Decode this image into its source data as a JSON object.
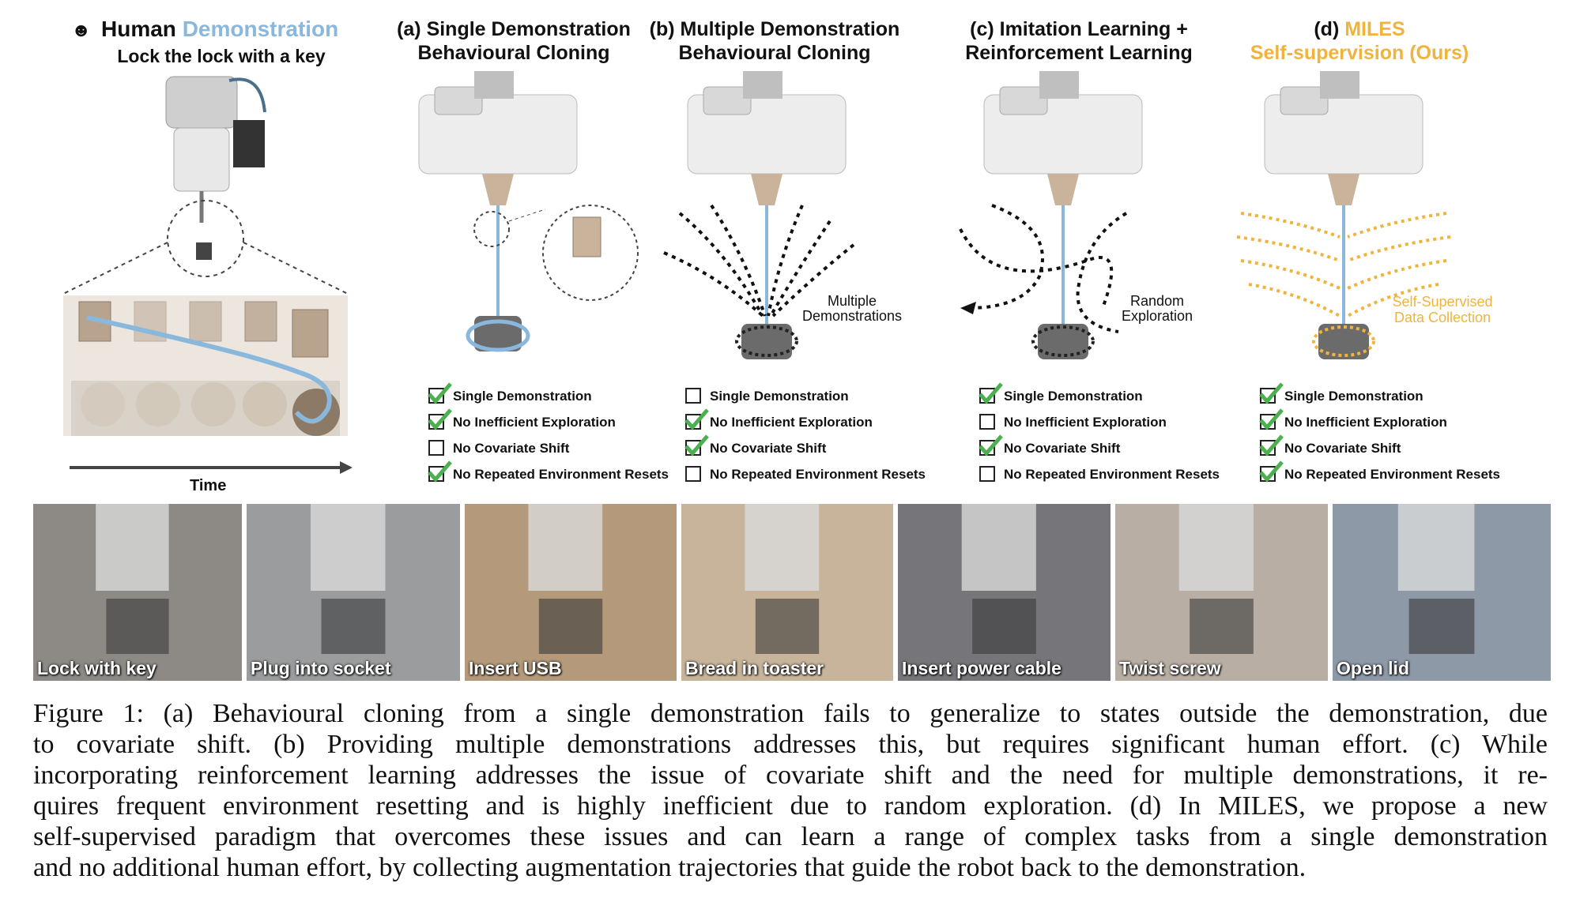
{
  "panels": {
    "human": {
      "title_a": "Human",
      "title_b": "Demonstration",
      "subtitle": "Lock the lock with a key",
      "time_label": "Time"
    },
    "a": {
      "line1": "(a) Single Demonstration",
      "line2": "Behavioural Cloning"
    },
    "b": {
      "line1": "(b) Multiple Demonstration",
      "line2": "Behavioural Cloning",
      "annotation_1": "Multiple",
      "annotation_2": "Demonstrations"
    },
    "c": {
      "line1": "(c) Imitation Learning +",
      "line2": "Reinforcement Learning",
      "annotation_1": "Random",
      "annotation_2": "Exploration"
    },
    "d": {
      "line1_prefix": "(d) ",
      "line1_accent": "MILES",
      "line2": "Self-supervision (Ours)",
      "annotation_1": "Self-Supervised",
      "annotation_2": "Data Collection"
    }
  },
  "checklist_labels": [
    "Single Demonstration",
    "No Inefficient Exploration",
    "No Covariate Shift",
    "No Repeated Environment Resets"
  ],
  "checklists": {
    "a": [
      true,
      true,
      false,
      true
    ],
    "b": [
      false,
      true,
      true,
      false
    ],
    "c": [
      true,
      false,
      true,
      false
    ],
    "d": [
      true,
      true,
      true,
      true
    ]
  },
  "tasks": [
    "Lock with key",
    "Plug into socket",
    "Insert USB",
    "Bread in toaster",
    "Insert power cable",
    "Twist screw",
    "Open lid"
  ],
  "caption_lines": [
    "Figure 1: (a) Behavioural cloning from a single demonstration fails to generalize to states outside the demonstration, due",
    "to covariate shift.  (b) Providing multiple demonstrations addresses this, but requires significant human effort.  (c) While",
    "incorporating reinforcement learning addresses the issue of covariate shift and the need for multiple demonstrations, it re-",
    "quires frequent environment resetting and is highly inefficient due to random exploration. (d) In MILES, we propose a new",
    "self-supervised paradigm that overcomes these issues and can learn a range of complex tasks from a single demonstration",
    "and no additional human effort, by collecting augmentation trajectories that guide the robot back to the demonstration."
  ],
  "colors": {
    "trajectory": "#8ab7dc",
    "miles": "#f0b43c",
    "check": "#4caf50"
  },
  "icons": {
    "human": "person-icon",
    "checked": "checkmark-icon",
    "unchecked": "empty-checkbox-icon"
  }
}
